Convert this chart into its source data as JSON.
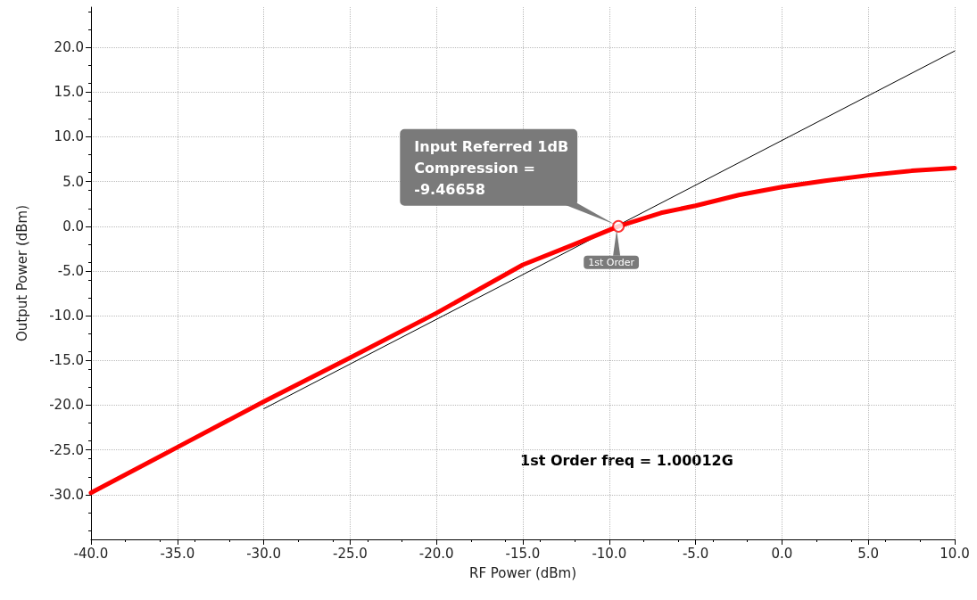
{
  "chart_data": {
    "type": "line",
    "xlabel": "RF Power (dBm)",
    "ylabel": "Output Power (dBm)",
    "series": [
      {
        "color": "#ff0000",
        "x": [
          -40,
          -35,
          -30,
          -25,
          -20,
          -15,
          -12,
          -9.47,
          -7,
          -5,
          -2.5,
          0,
          2.5,
          5,
          7.5,
          10
        ],
        "values": [
          -29.8,
          -24.7,
          -19.6,
          -14.7,
          -9.7,
          -4.3,
          -2.0,
          0,
          1.5,
          2.3,
          3.5,
          4.4,
          5.1,
          5.7,
          6.2,
          6.5
        ]
      },
      {
        "color": "#000000",
        "x": [
          -30,
          10
        ],
        "values": [
          -20.4,
          19.6
        ]
      }
    ],
    "annotations": [
      {
        "text": "Input Referred 1dB\nCompression =\n-9.46658",
        "x": -9.46658,
        "y": 0
      },
      {
        "text": "1st Order",
        "x": -9.46658,
        "y": 0
      },
      "1st Order freq = 1.00012G"
    ],
    "xlim": [
      -40,
      10
    ],
    "ylim": [
      -35,
      24.5
    ],
    "xticks": [
      {
        "value": -40,
        "label": "-40.0"
      },
      {
        "value": -35,
        "label": "-35.0"
      },
      {
        "value": -30,
        "label": "-30.0"
      },
      {
        "value": -25,
        "label": "-25.0"
      },
      {
        "value": -20,
        "label": "-20.0"
      },
      {
        "value": -15,
        "label": "-15.0"
      },
      {
        "value": -10,
        "label": "-10.0"
      },
      {
        "value": -5,
        "label": "-5.0"
      },
      {
        "value": 0,
        "label": "0.0"
      },
      {
        "value": 5,
        "label": "5.0"
      },
      {
        "value": 10,
        "label": "10.0"
      }
    ],
    "yticks": [
      {
        "value": -30,
        "label": "-30.0"
      },
      {
        "value": -25,
        "label": "-25.0"
      },
      {
        "value": -20,
        "label": "-20.0"
      },
      {
        "value": -15,
        "label": "-15.0"
      },
      {
        "value": -10,
        "label": "-10.0"
      },
      {
        "value": -5,
        "label": "-5.0"
      },
      {
        "value": 0,
        "label": "0.0"
      },
      {
        "value": 5,
        "label": "5.0"
      },
      {
        "value": 10,
        "label": "10.0"
      },
      {
        "value": 15,
        "label": "15.0"
      },
      {
        "value": 20,
        "label": "20.0"
      }
    ],
    "grid": true,
    "marker": "none",
    "line_style": "solid"
  }
}
